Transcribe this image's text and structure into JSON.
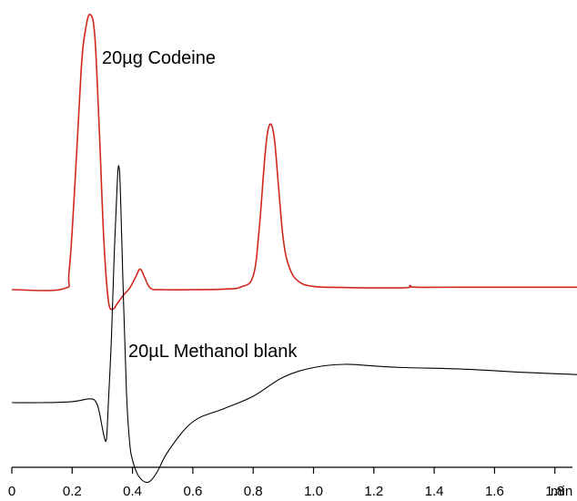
{
  "chart_data": {
    "type": "line",
    "title": "",
    "xlabel": "",
    "ylabel": "",
    "x_unit": "min",
    "xlim": [
      0,
      1.95
    ],
    "x_ticks": [
      "0",
      "0.2",
      "0.4",
      "0.6",
      "0.8",
      "1.0",
      "1.2",
      "1.4",
      "1.6",
      "1.8"
    ],
    "grid": false,
    "legend": "none",
    "series": [
      {
        "name": "20µg Codeine",
        "color": "#d0281e",
        "x": [
          0.0,
          0.17,
          0.19,
          0.21,
          0.23,
          0.245,
          0.26,
          0.275,
          0.29,
          0.305,
          0.32,
          0.335,
          0.35,
          0.37,
          0.39,
          0.41,
          0.425,
          0.44,
          0.46,
          0.5,
          0.6,
          0.7,
          0.76,
          0.8,
          0.82,
          0.84,
          0.855,
          0.87,
          0.885,
          0.9,
          0.92,
          0.95,
          1.0,
          1.1,
          1.3,
          1.32,
          1.34,
          1.5,
          1.7,
          1.95
        ],
        "y": [
          0.0,
          0.3,
          7.0,
          40.0,
          80.0,
          95.0,
          100.0,
          92.0,
          58.0,
          18.0,
          -4.0,
          -7.0,
          -5.0,
          -2.0,
          0.5,
          4.5,
          7.5,
          4.5,
          0.5,
          0.0,
          0.0,
          0.2,
          1.0,
          5.0,
          22.0,
          50.0,
          60.0,
          55.0,
          36.0,
          18.0,
          8.0,
          3.0,
          1.2,
          0.8,
          0.7,
          1.5,
          0.9,
          0.9,
          0.9,
          0.9
        ]
      },
      {
        "name": "20µL Methanol blank",
        "color": "#000000",
        "x": [
          0.0,
          0.1,
          0.2,
          0.26,
          0.28,
          0.29,
          0.3,
          0.31,
          0.315,
          0.32,
          0.33,
          0.34,
          0.35,
          0.355,
          0.36,
          0.37,
          0.38,
          0.39,
          0.4,
          0.42,
          0.45,
          0.48,
          0.52,
          0.6,
          0.7,
          0.8,
          0.9,
          1.0,
          1.1,
          1.2,
          1.3,
          1.5,
          1.7,
          1.95
        ],
        "y": [
          0.0,
          0.0,
          0.3,
          1.2,
          0.0,
          -3.0,
          -8.0,
          -12.0,
          -10.0,
          0.0,
          20.0,
          48.0,
          70.0,
          74.0,
          66.0,
          32.0,
          3.0,
          -12.0,
          -18.0,
          -23.0,
          -25.0,
          -22.0,
          -15.0,
          -6.0,
          -2.0,
          2.0,
          8.0,
          11.0,
          12.0,
          11.5,
          11.0,
          10.5,
          9.5,
          8.5
        ]
      }
    ]
  }
}
